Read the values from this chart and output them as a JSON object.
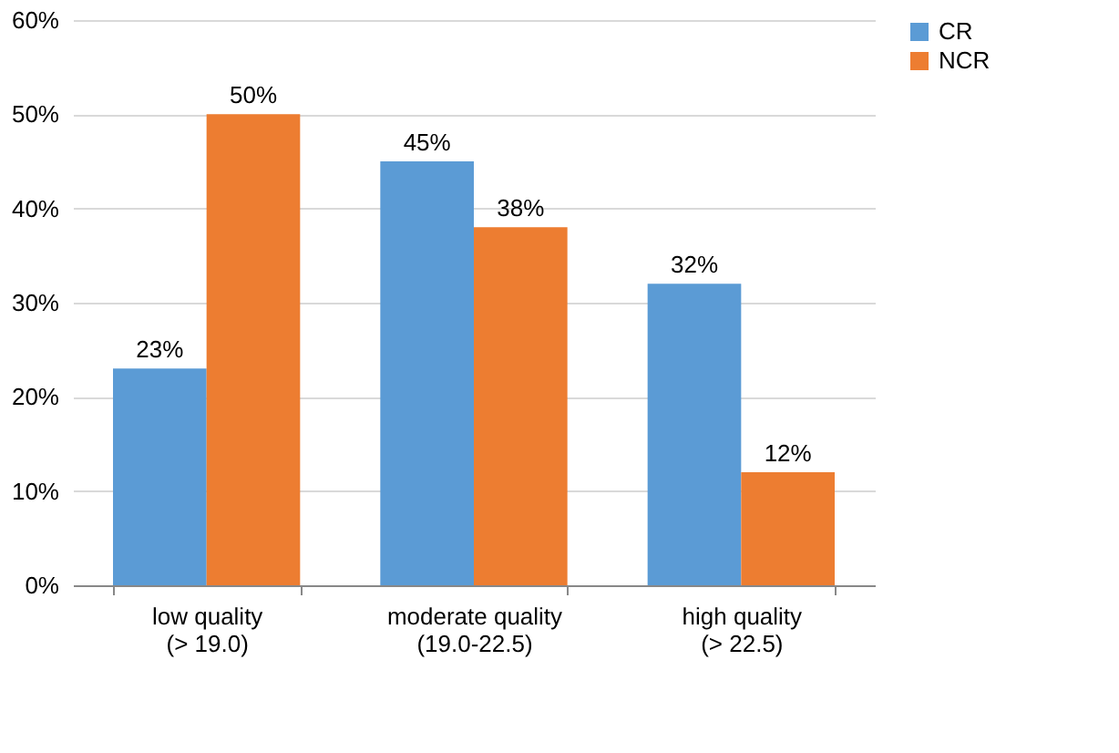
{
  "chart_data": {
    "type": "bar",
    "categories": [
      "low quality\n(> 19.0)",
      "moderate quality\n(19.0-22.5)",
      "high quality\n(> 22.5)"
    ],
    "series": [
      {
        "name": "CR",
        "color": "#5b9bd5",
        "values": [
          23,
          45,
          32
        ],
        "value_labels": [
          "23%",
          "45%",
          "32%"
        ]
      },
      {
        "name": "NCR",
        "color": "#ed7d31",
        "values": [
          50,
          38,
          12
        ],
        "value_labels": [
          "50%",
          "38%",
          "12%"
        ]
      }
    ],
    "ylim": [
      0,
      60
    ],
    "yticks": [
      {
        "value": 0,
        "label": "0%"
      },
      {
        "value": 10,
        "label": "10%"
      },
      {
        "value": 20,
        "label": "20%"
      },
      {
        "value": 30,
        "label": "30%"
      },
      {
        "value": 40,
        "label": "40%"
      },
      {
        "value": 50,
        "label": "50%"
      },
      {
        "value": 60,
        "label": "60%"
      }
    ],
    "grid": "y",
    "legend": "right"
  }
}
